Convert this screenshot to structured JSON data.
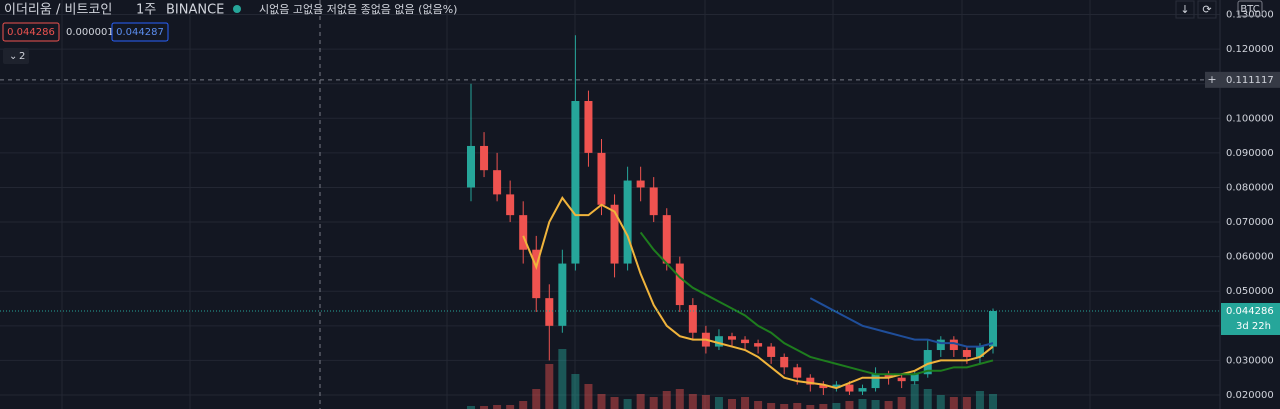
{
  "header": {
    "symbol": "이더리움 / 비트코인",
    "interval": "1주",
    "exchange": "BINANCE",
    "status": "시없음 고없음 저없음 종없음 없음 (없음%)",
    "currency": "BTC"
  },
  "legend": {
    "values": [
      "0.044286",
      "0.000001",
      "0.044287"
    ],
    "collapse": "2"
  },
  "chart": {
    "type": "candlestick",
    "ylim": [
      0.01595,
      0.1342
    ],
    "yticks": [
      {
        "value": 0.02,
        "label": "0.020000"
      },
      {
        "value": 0.03,
        "label": "0.030000"
      },
      {
        "value": 0.04,
        "label": "0.040000"
      },
      {
        "value": 0.05,
        "label": "0.050000"
      },
      {
        "value": 0.06,
        "label": "0.060000"
      },
      {
        "value": 0.07,
        "label": "0.070000"
      },
      {
        "value": 0.08,
        "label": "0.080000"
      },
      {
        "value": 0.09,
        "label": "0.090000"
      },
      {
        "value": 0.1,
        "label": "0.100000"
      },
      {
        "value": 0.11,
        "label": "0.110000"
      },
      {
        "value": 0.12,
        "label": "0.120000"
      },
      {
        "value": 0.13,
        "label": "0.130000"
      }
    ],
    "open": [
      0.08,
      0.092,
      0.085,
      0.078,
      0.072,
      0.062,
      0.048,
      0.04,
      0.058,
      0.105,
      0.09,
      0.075,
      0.058,
      0.082,
      0.08,
      0.072,
      0.058,
      0.046,
      0.038,
      0.034,
      0.037,
      0.036,
      0.035,
      0.034,
      0.031,
      0.028,
      0.025,
      0.023,
      0.022,
      0.023,
      0.021,
      0.022,
      0.026,
      0.025,
      0.024,
      0.026,
      0.033,
      0.036,
      0.033,
      0.031,
      0.034
    ],
    "high": [
      0.11,
      0.096,
      0.09,
      0.082,
      0.076,
      0.066,
      0.052,
      0.062,
      0.124,
      0.108,
      0.094,
      0.078,
      0.086,
      0.086,
      0.083,
      0.074,
      0.06,
      0.048,
      0.04,
      0.039,
      0.038,
      0.037,
      0.036,
      0.035,
      0.032,
      0.029,
      0.026,
      0.024,
      0.024,
      0.024,
      0.023,
      0.028,
      0.027,
      0.026,
      0.027,
      0.036,
      0.037,
      0.037,
      0.034,
      0.035,
      0.045
    ],
    "low": [
      0.076,
      0.083,
      0.076,
      0.07,
      0.058,
      0.044,
      0.03,
      0.038,
      0.056,
      0.086,
      0.072,
      0.054,
      0.056,
      0.076,
      0.07,
      0.056,
      0.044,
      0.036,
      0.032,
      0.033,
      0.034,
      0.033,
      0.032,
      0.029,
      0.026,
      0.023,
      0.021,
      0.02,
      0.021,
      0.02,
      0.02,
      0.021,
      0.023,
      0.022,
      0.023,
      0.025,
      0.031,
      0.031,
      0.029,
      0.029,
      0.032
    ],
    "close": [
      0.092,
      0.085,
      0.078,
      0.072,
      0.062,
      0.048,
      0.04,
      0.058,
      0.105,
      0.09,
      0.075,
      0.058,
      0.082,
      0.08,
      0.072,
      0.058,
      0.046,
      0.038,
      0.034,
      0.037,
      0.036,
      0.035,
      0.034,
      0.031,
      0.028,
      0.025,
      0.023,
      0.022,
      0.023,
      0.021,
      0.022,
      0.026,
      0.025,
      0.024,
      0.026,
      0.033,
      0.036,
      0.033,
      0.031,
      0.034,
      0.044286
    ],
    "volume": [
      3,
      3,
      4,
      4,
      8,
      20,
      45,
      60,
      35,
      25,
      15,
      12,
      10,
      15,
      12,
      18,
      20,
      15,
      14,
      12,
      10,
      12,
      8,
      6,
      5,
      6,
      4,
      5,
      6,
      8,
      10,
      9,
      8,
      12,
      25,
      20,
      14,
      12,
      12,
      18,
      15
    ],
    "up_color": "#26a69a",
    "down_color": "#ef5350",
    "ma": [
      {
        "color": "#f0b43c",
        "values": [
          null,
          null,
          null,
          null,
          0.066,
          0.057,
          0.07,
          0.077,
          0.072,
          0.072,
          0.075,
          0.073,
          0.066,
          0.055,
          0.046,
          0.04,
          0.037,
          0.036,
          0.036,
          0.035,
          0.034,
          0.033,
          0.031,
          0.028,
          0.025,
          0.024,
          0.0235,
          0.023,
          0.022,
          0.0235,
          0.025,
          0.025,
          0.025,
          0.026,
          0.027,
          0.029,
          0.03,
          0.03,
          0.03,
          0.031,
          0.034
        ]
      },
      {
        "color": "#1e7d1e",
        "values": [
          null,
          null,
          null,
          null,
          null,
          null,
          null,
          null,
          null,
          null,
          null,
          null,
          null,
          0.067,
          0.062,
          0.058,
          0.054,
          0.051,
          0.049,
          0.047,
          0.045,
          0.043,
          0.04,
          0.038,
          0.035,
          0.033,
          0.031,
          0.03,
          0.029,
          0.028,
          0.027,
          0.026,
          0.026,
          0.026,
          0.026,
          0.027,
          0.027,
          0.028,
          0.028,
          0.029,
          0.03
        ]
      },
      {
        "color": "#1f4e9a",
        "values": [
          null,
          null,
          null,
          null,
          null,
          null,
          null,
          null,
          null,
          null,
          null,
          null,
          null,
          null,
          null,
          null,
          null,
          null,
          null,
          null,
          null,
          null,
          null,
          null,
          null,
          null,
          0.048,
          0.046,
          0.044,
          0.042,
          0.04,
          0.039,
          0.038,
          0.037,
          0.036,
          0.036,
          0.035,
          0.035,
          0.034,
          0.034,
          0.035
        ]
      }
    ],
    "crosshair": {
      "value": 0.111117,
      "label": "0.111117"
    },
    "last_price": {
      "value": 0.044286,
      "label": "0.044286",
      "countdown": "3d 22h"
    }
  }
}
